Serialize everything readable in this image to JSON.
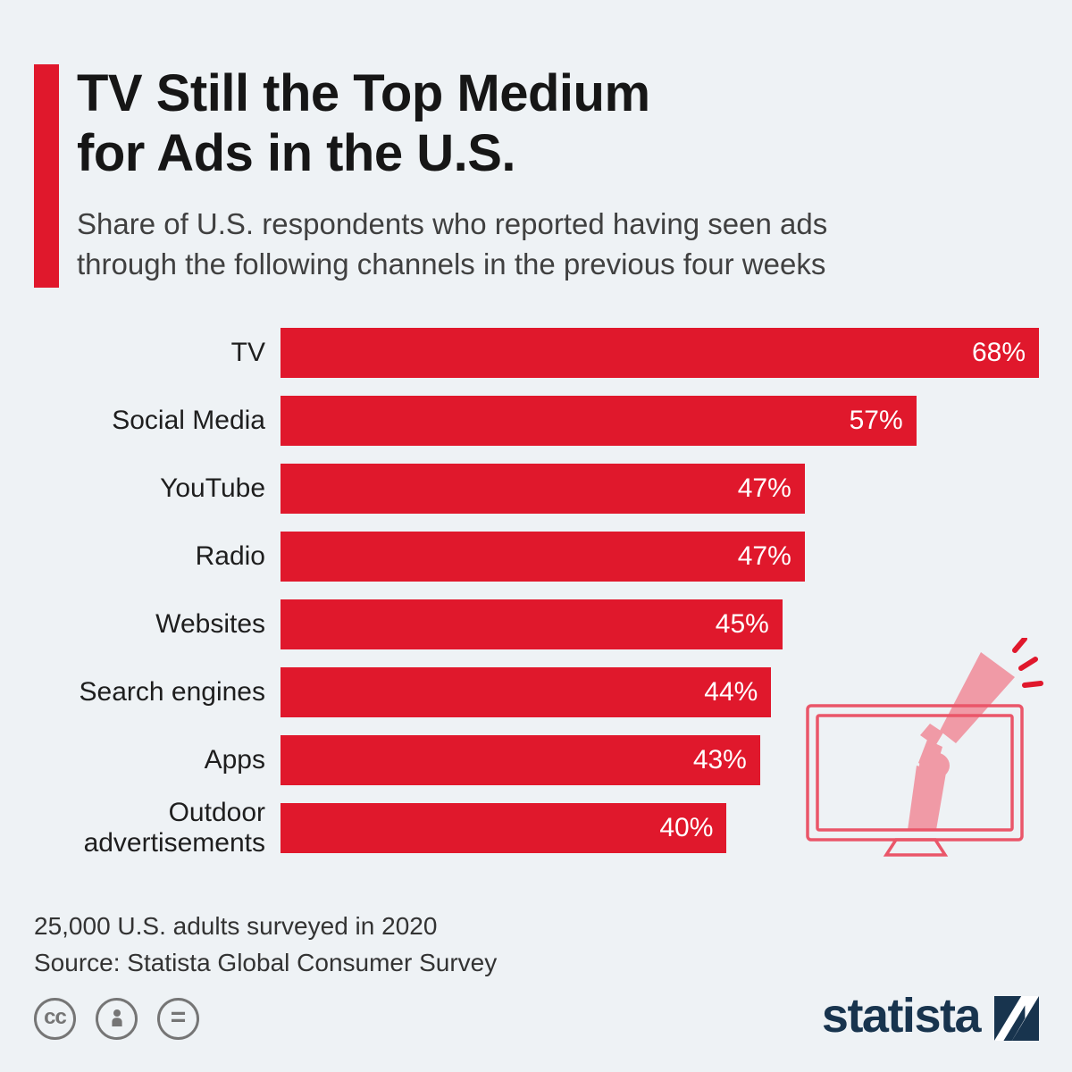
{
  "colors": {
    "accent": "#e0182c",
    "background": "#eef2f5",
    "title": "#161616",
    "subtitle": "#404040",
    "brand_navy": "#18344e",
    "illustration_pink": "#f09aa6",
    "illustration_outline": "#ea5669",
    "license_gray": "#757575"
  },
  "header": {
    "title_lines": [
      "TV Still the Top Medium",
      "for Ads in the U.S."
    ],
    "subtitle_lines": [
      "Share of U.S. respondents who reported having seen ads",
      "through the following channels in the previous four weeks"
    ]
  },
  "chart_data": {
    "type": "bar",
    "orientation": "horizontal",
    "title": "TV Still the Top Medium for Ads in the U.S.",
    "categories": [
      "TV",
      "Social Media",
      "YouTube",
      "Radio",
      "Websites",
      "Search engines",
      "Apps",
      "Outdoor advertisements"
    ],
    "values": [
      68,
      57,
      47,
      47,
      45,
      44,
      43,
      40
    ],
    "value_labels": [
      "68%",
      "57%",
      "47%",
      "47%",
      "45%",
      "44%",
      "43%",
      "40%"
    ],
    "unit": "%",
    "xlim": [
      0,
      68
    ],
    "bar_color": "#e0182c",
    "value_label_color": "#ffffff",
    "grid": false,
    "legend": false
  },
  "footer": {
    "note": "25,000 U.S. adults surveyed in 2020",
    "source": "Source: Statista Global Consumer Survey"
  },
  "branding": {
    "logo_text": "statista"
  },
  "license_icons": [
    {
      "name": "cc-icon",
      "glyph": "cc"
    },
    {
      "name": "attribution-icon",
      "glyph": ""
    },
    {
      "name": "no-derivatives-icon",
      "glyph": "="
    }
  ]
}
